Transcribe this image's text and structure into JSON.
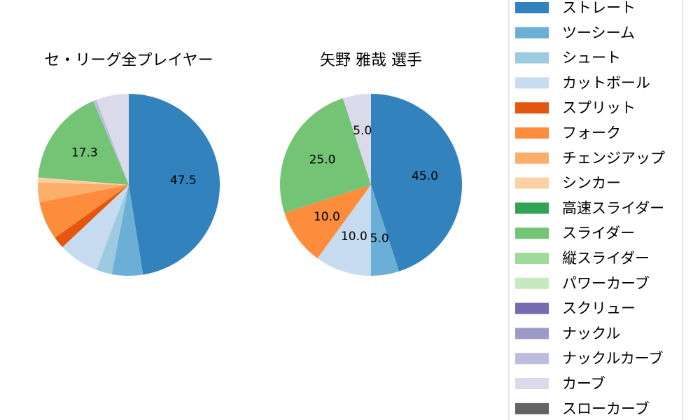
{
  "chart_data": [
    {
      "type": "pie",
      "title": "セ・リーグ全プレイヤー",
      "slices": [
        {
          "label": "ストレート",
          "value": 47.5,
          "color": "#3182bd",
          "text": "47.5"
        },
        {
          "label": "ツーシーム",
          "value": 5.5,
          "color": "#6baed6",
          "text": ""
        },
        {
          "label": "シュート",
          "value": 2.8,
          "color": "#9ecae1",
          "text": ""
        },
        {
          "label": "カットボール",
          "value": 7.2,
          "color": "#c6dbef",
          "text": ""
        },
        {
          "label": "スプリット",
          "value": 2.1,
          "color": "#e6550d",
          "text": ""
        },
        {
          "label": "フォーク",
          "value": 6.8,
          "color": "#fd8d3c",
          "text": ""
        },
        {
          "label": "チェンジアップ",
          "value": 3.5,
          "color": "#fdae6b",
          "text": ""
        },
        {
          "label": "シンカー",
          "value": 0.9,
          "color": "#fdd0a2",
          "text": ""
        },
        {
          "label": "スライダー",
          "value": 17.3,
          "color": "#74c476",
          "text": "17.3"
        },
        {
          "label": "ナックルカーブ",
          "value": 0.6,
          "color": "#bcbddc",
          "text": ""
        },
        {
          "label": "カーブ",
          "value": 5.8,
          "color": "#dadaeb",
          "text": ""
        }
      ]
    },
    {
      "type": "pie",
      "title": "矢野 雅哉 選手",
      "slices": [
        {
          "label": "ストレート",
          "value": 45.0,
          "color": "#3182bd",
          "text": "45.0"
        },
        {
          "label": "ツーシーム",
          "value": 5.0,
          "color": "#6baed6",
          "text": "5.0"
        },
        {
          "label": "カットボール",
          "value": 10.0,
          "color": "#c6dbef",
          "text": "10.0"
        },
        {
          "label": "フォーク",
          "value": 10.0,
          "color": "#fd8d3c",
          "text": "10.0"
        },
        {
          "label": "スライダー",
          "value": 25.0,
          "color": "#74c476",
          "text": "25.0"
        },
        {
          "label": "カーブ",
          "value": 5.0,
          "color": "#dadaeb",
          "text": "5.0"
        }
      ]
    }
  ],
  "legend": {
    "placement": "right",
    "items": [
      {
        "label": "ストレート",
        "color": "#3182bd"
      },
      {
        "label": "ツーシーム",
        "color": "#6baed6"
      },
      {
        "label": "シュート",
        "color": "#9ecae1"
      },
      {
        "label": "カットボール",
        "color": "#c6dbef"
      },
      {
        "label": "スプリット",
        "color": "#e6550d"
      },
      {
        "label": "フォーク",
        "color": "#fd8d3c"
      },
      {
        "label": "チェンジアップ",
        "color": "#fdae6b"
      },
      {
        "label": "シンカー",
        "color": "#fdd0a2"
      },
      {
        "label": "高速スライダー",
        "color": "#31a354"
      },
      {
        "label": "スライダー",
        "color": "#74c476"
      },
      {
        "label": "縦スライダー",
        "color": "#a1d99b"
      },
      {
        "label": "パワーカーブ",
        "color": "#c7e9c0"
      },
      {
        "label": "スクリュー",
        "color": "#756bb1"
      },
      {
        "label": "ナックル",
        "color": "#9e9ac8"
      },
      {
        "label": "ナックルカーブ",
        "color": "#bcbddc"
      },
      {
        "label": "カーブ",
        "color": "#dadaeb"
      },
      {
        "label": "スローカーブ",
        "color": "#636363"
      }
    ]
  }
}
